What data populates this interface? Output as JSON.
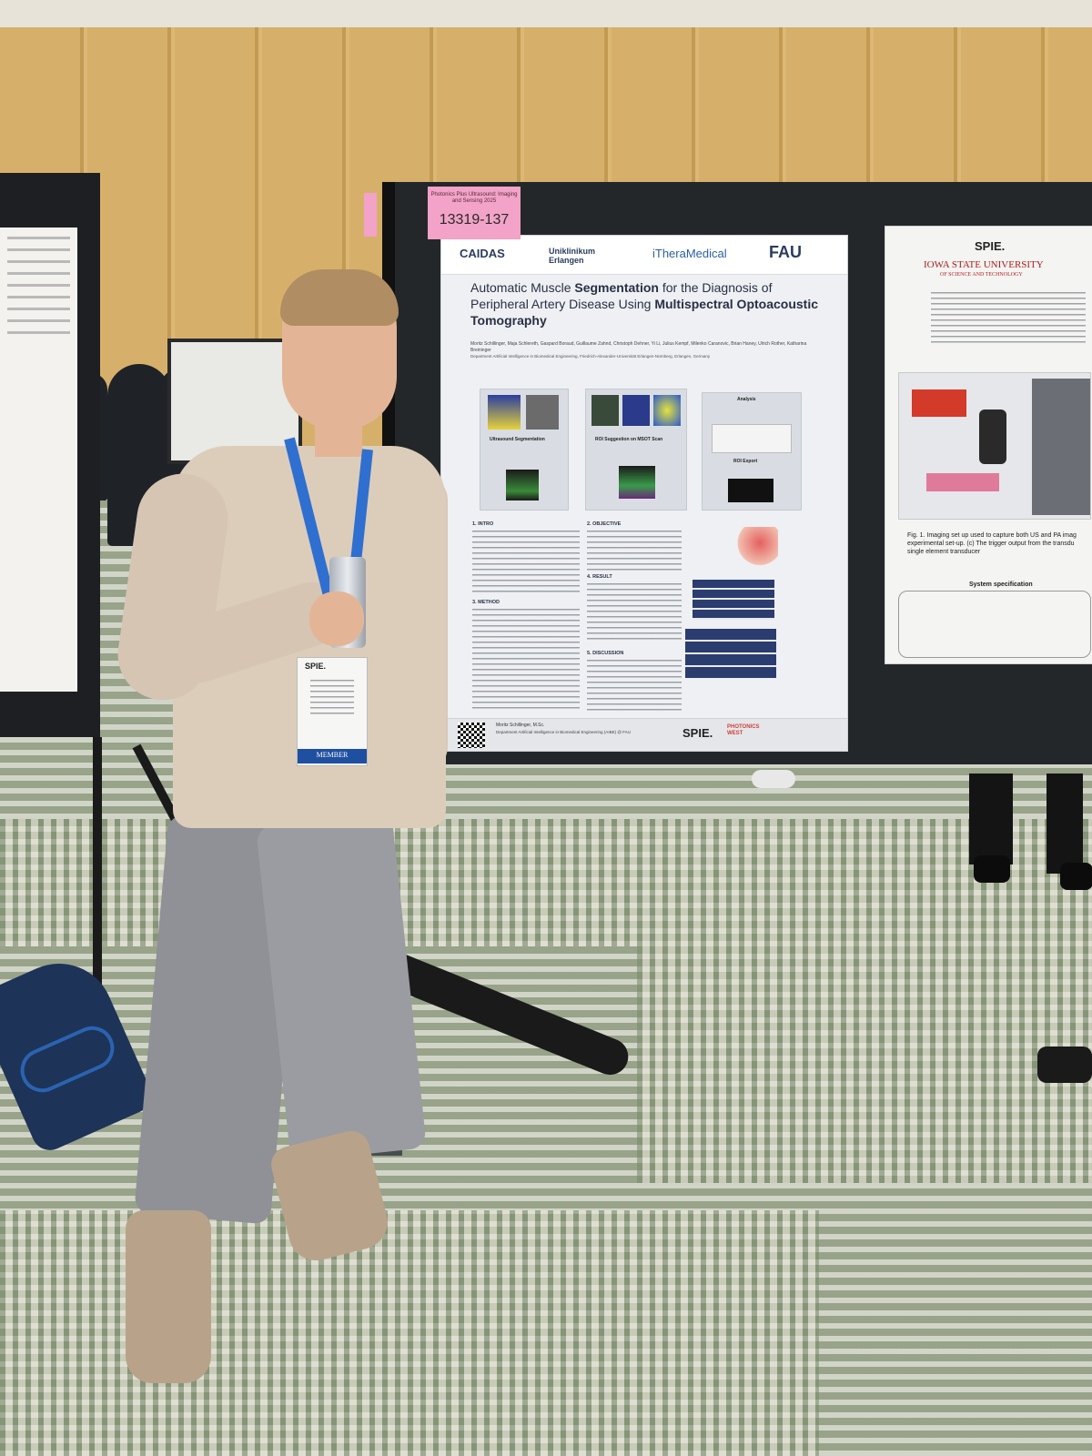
{
  "pink_note": {
    "small_text": "Photonics Plus Ultrasound: Imaging and Sensing 2025",
    "number": "13319-137"
  },
  "poster": {
    "logos": [
      "CAIDAS",
      "Uniklinikum Erlangen",
      "iTheraMedical",
      "FAU"
    ],
    "title_part1": "Automatic Muscle ",
    "title_bold1": "Segmentation",
    "title_part2": " for the Diagnosis of Peripheral Artery Disease Using ",
    "title_bold2": "Multispectral Optoacoustic Tomography",
    "authors": "Moritz Schillinger, Maja Schlereth, Gaspard Boraud, Guillaume Zahnd, Christoph Dehner, Yi Li, Julius Kempf, Milenko Caranovic, Brian Haney, Ulrich Rother, Katharina Breininger",
    "affiliations": "Department Artificial Intelligence in Biomedical Engineering, Friedrich-Alexander-Universität Erlangen-Nürnberg, Erlangen, Germany",
    "panel_labels": [
      "Ultrasound Segmentation",
      "ROI Suggestion on MSOT Scan",
      "Analysis",
      "ROI Export"
    ],
    "sections": [
      "1. INTRO",
      "2. OBJECTIVE",
      "3. METHOD",
      "4. RESULT",
      "5. DISCUSSION"
    ],
    "footer_name": "Moritz Schillinger, M.Sc.",
    "footer_dept": "Department Artificial Intelligence in Biomedical Engineering (AIBE) @ FAU",
    "footer_brand": "SPIE.",
    "footer_brand_sub": "PHOTONICS WEST"
  },
  "right_poster": {
    "brand": "SPIE.",
    "university": "IOWA STATE UNIVERSITY",
    "university_sub": "OF SCIENCE AND TECHNOLOGY",
    "caption": "Fig. 1. Imaging set up used to capture both US and PA imag experimental set-up. (c) The trigger output from the transdu single element transducer",
    "spec_title": "System specification"
  },
  "badge": {
    "brand": "SPIE.",
    "member_label": "MEMBER"
  },
  "colors": {
    "lanyard": "#2f6fd0",
    "pink_note": "#f2a3c7",
    "board": "#23272a"
  }
}
